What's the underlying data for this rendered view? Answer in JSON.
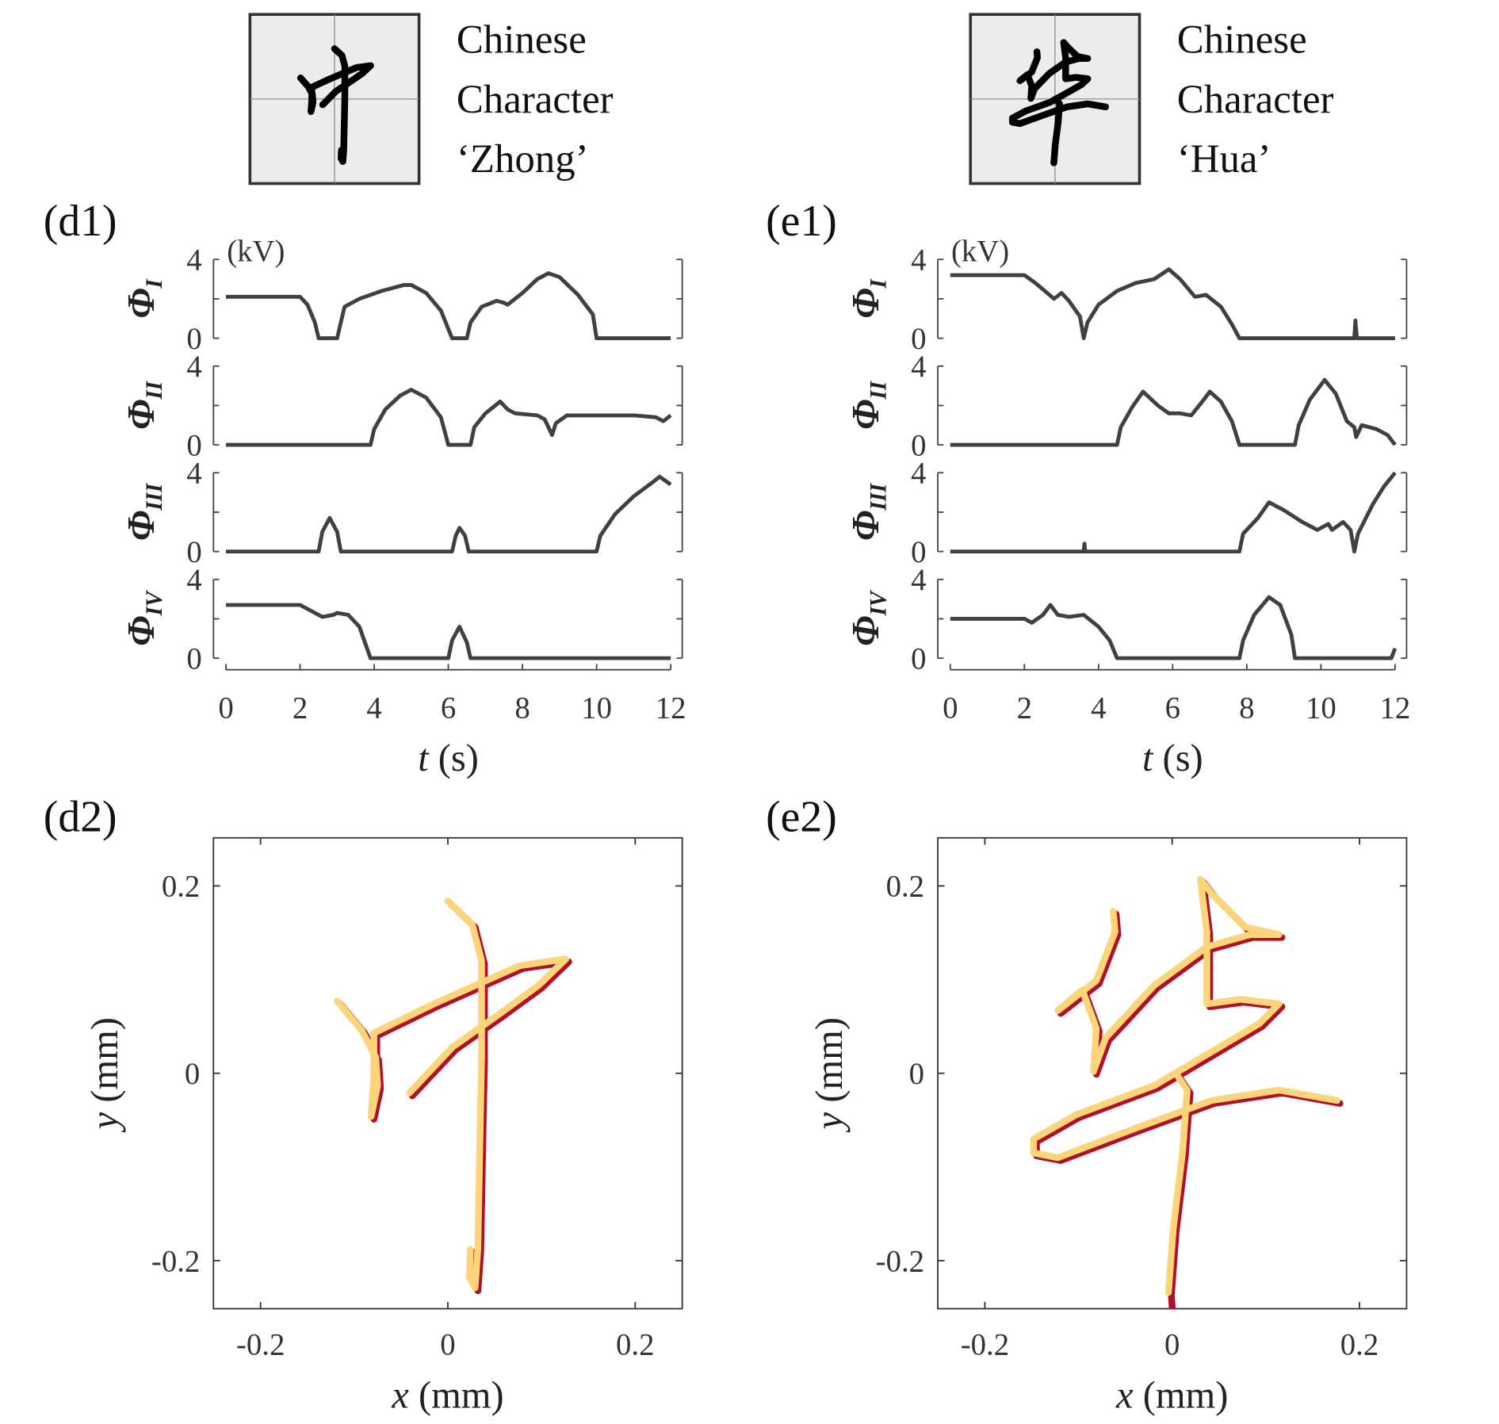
{
  "colors": {
    "trace": "#404040",
    "actual": "#b0102a",
    "target": "#fcd57a",
    "box_fill": "#ececec"
  },
  "header": [
    {
      "title_lines": [
        "Chinese",
        "Character",
        "‘Zhong’"
      ],
      "glyph": "中"
    },
    {
      "title_lines": [
        "Chinese",
        "Character",
        "‘Hua’"
      ],
      "glyph": "华"
    }
  ],
  "chart_data": [
    {
      "type": "line",
      "panel_label": "(d1)",
      "unit_label": "(kV)",
      "xlabel_var": "t",
      "xlabel_unit": "(s)",
      "xlim": [
        0,
        12
      ],
      "xticks": [
        0,
        2,
        4,
        6,
        8,
        10,
        12
      ],
      "ylim": [
        0,
        4
      ],
      "yticks": [
        0,
        4
      ],
      "series": [
        {
          "name": "Φ",
          "sub": "I",
          "points": [
            [
              0,
              2.1
            ],
            [
              2,
              2.1
            ],
            [
              2.2,
              1.7
            ],
            [
              2.4,
              0.8
            ],
            [
              2.5,
              0
            ],
            [
              3.0,
              0
            ],
            [
              3.1,
              0.8
            ],
            [
              3.2,
              1.6
            ],
            [
              3.6,
              2.0
            ],
            [
              4.2,
              2.4
            ],
            [
              4.8,
              2.7
            ],
            [
              5.0,
              2.7
            ],
            [
              5.4,
              2.3
            ],
            [
              5.8,
              1.4
            ],
            [
              6.1,
              0
            ],
            [
              6.5,
              0
            ],
            [
              6.6,
              0.8
            ],
            [
              6.9,
              1.6
            ],
            [
              7.3,
              1.9
            ],
            [
              7.5,
              1.8
            ],
            [
              7.6,
              1.7
            ],
            [
              8,
              2.3
            ],
            [
              8.4,
              3.0
            ],
            [
              8.7,
              3.3
            ],
            [
              9.0,
              3.1
            ],
            [
              9.5,
              2.2
            ],
            [
              9.9,
              1.2
            ],
            [
              10,
              0
            ],
            [
              12,
              0
            ]
          ]
        },
        {
          "name": "Φ",
          "sub": "II",
          "points": [
            [
              0,
              0
            ],
            [
              3.9,
              0
            ],
            [
              4.0,
              0.8
            ],
            [
              4.3,
              1.8
            ],
            [
              4.7,
              2.5
            ],
            [
              5.0,
              2.8
            ],
            [
              5.4,
              2.4
            ],
            [
              5.8,
              1.4
            ],
            [
              6.0,
              0
            ],
            [
              6.6,
              0
            ],
            [
              6.7,
              0.9
            ],
            [
              7.0,
              1.6
            ],
            [
              7.4,
              2.2
            ],
            [
              7.6,
              1.8
            ],
            [
              7.8,
              1.6
            ],
            [
              8.4,
              1.5
            ],
            [
              8.6,
              1.3
            ],
            [
              8.8,
              0.5
            ],
            [
              8.9,
              1.1
            ],
            [
              9.2,
              1.5
            ],
            [
              10,
              1.5
            ],
            [
              11,
              1.5
            ],
            [
              11.6,
              1.4
            ],
            [
              11.8,
              1.2
            ],
            [
              12,
              1.5
            ]
          ]
        },
        {
          "name": "Φ",
          "sub": "III",
          "points": [
            [
              0,
              0
            ],
            [
              2.5,
              0
            ],
            [
              2.6,
              1.0
            ],
            [
              2.8,
              1.7
            ],
            [
              3.0,
              1.0
            ],
            [
              3.1,
              0
            ],
            [
              6.1,
              0
            ],
            [
              6.2,
              0.8
            ],
            [
              6.3,
              1.2
            ],
            [
              6.45,
              0.8
            ],
            [
              6.55,
              0
            ],
            [
              10,
              0
            ],
            [
              10.1,
              0.8
            ],
            [
              10.5,
              1.9
            ],
            [
              11,
              2.8
            ],
            [
              11.5,
              3.5
            ],
            [
              11.7,
              3.8
            ],
            [
              12,
              3.4
            ]
          ]
        },
        {
          "name": "Φ",
          "sub": "IV",
          "points": [
            [
              0,
              2.7
            ],
            [
              2,
              2.7
            ],
            [
              2.3,
              2.4
            ],
            [
              2.6,
              2.1
            ],
            [
              2.9,
              2.2
            ],
            [
              3.0,
              2.3
            ],
            [
              3.3,
              2.2
            ],
            [
              3.6,
              1.6
            ],
            [
              3.9,
              0
            ],
            [
              6.0,
              0
            ],
            [
              6.1,
              0.9
            ],
            [
              6.3,
              1.6
            ],
            [
              6.5,
              0.8
            ],
            [
              6.6,
              0
            ],
            [
              12,
              0
            ]
          ]
        }
      ]
    },
    {
      "type": "line",
      "panel_label": "(e1)",
      "unit_label": "(kV)",
      "xlabel_var": "t",
      "xlabel_unit": "(s)",
      "xlim": [
        0,
        12
      ],
      "xticks": [
        0,
        2,
        4,
        6,
        8,
        10,
        12
      ],
      "ylim": [
        0,
        4
      ],
      "yticks": [
        0,
        4
      ],
      "series": [
        {
          "name": "Φ",
          "sub": "I",
          "points": [
            [
              0,
              3.2
            ],
            [
              2,
              3.2
            ],
            [
              2.3,
              2.8
            ],
            [
              2.8,
              2.0
            ],
            [
              3.0,
              2.3
            ],
            [
              3.2,
              1.9
            ],
            [
              3.5,
              1.1
            ],
            [
              3.6,
              0
            ],
            [
              3.7,
              0.8
            ],
            [
              4.0,
              1.7
            ],
            [
              4.5,
              2.4
            ],
            [
              5,
              2.8
            ],
            [
              5.5,
              3.0
            ],
            [
              5.9,
              3.5
            ],
            [
              6.2,
              3.0
            ],
            [
              6.6,
              2.1
            ],
            [
              6.9,
              2.2
            ],
            [
              7.3,
              1.6
            ],
            [
              7.6,
              0.7
            ],
            [
              7.8,
              0
            ],
            [
              10.9,
              0
            ],
            [
              10.93,
              0.9
            ],
            [
              10.97,
              0
            ],
            [
              12,
              0
            ]
          ]
        },
        {
          "name": "Φ",
          "sub": "II",
          "points": [
            [
              0,
              0
            ],
            [
              4.5,
              0
            ],
            [
              4.6,
              0.9
            ],
            [
              4.9,
              1.9
            ],
            [
              5.2,
              2.7
            ],
            [
              5.6,
              2.0
            ],
            [
              5.9,
              1.6
            ],
            [
              6.2,
              1.6
            ],
            [
              6.5,
              1.5
            ],
            [
              6.8,
              2.2
            ],
            [
              7.0,
              2.7
            ],
            [
              7.3,
              2.2
            ],
            [
              7.6,
              1.2
            ],
            [
              7.8,
              0
            ],
            [
              9.3,
              0
            ],
            [
              9.4,
              1.0
            ],
            [
              9.7,
              2.3
            ],
            [
              10.1,
              3.3
            ],
            [
              10.4,
              2.6
            ],
            [
              10.7,
              1.2
            ],
            [
              10.9,
              0.9
            ],
            [
              10.95,
              0.4
            ],
            [
              11.1,
              1.0
            ],
            [
              11.5,
              0.8
            ],
            [
              11.8,
              0.5
            ],
            [
              12,
              0
            ]
          ]
        },
        {
          "name": "Φ",
          "sub": "III",
          "points": [
            [
              0,
              0
            ],
            [
              3.6,
              0
            ],
            [
              3.62,
              0.4
            ],
            [
              3.64,
              0
            ],
            [
              7.8,
              0
            ],
            [
              7.9,
              0.9
            ],
            [
              8.3,
              1.7
            ],
            [
              8.6,
              2.5
            ],
            [
              9,
              2.1
            ],
            [
              9.5,
              1.5
            ],
            [
              9.9,
              1.1
            ],
            [
              10.2,
              1.4
            ],
            [
              10.3,
              1.1
            ],
            [
              10.6,
              1.5
            ],
            [
              10.8,
              1.1
            ],
            [
              10.9,
              0
            ],
            [
              11.0,
              0.9
            ],
            [
              11.4,
              2.4
            ],
            [
              11.7,
              3.3
            ],
            [
              12,
              4.0
            ]
          ]
        },
        {
          "name": "Φ",
          "sub": "IV",
          "points": [
            [
              0,
              2.0
            ],
            [
              2,
              2.0
            ],
            [
              2.2,
              1.8
            ],
            [
              2.5,
              2.2
            ],
            [
              2.7,
              2.7
            ],
            [
              2.9,
              2.2
            ],
            [
              3.2,
              2.1
            ],
            [
              3.6,
              2.2
            ],
            [
              4.0,
              1.6
            ],
            [
              4.3,
              0.9
            ],
            [
              4.5,
              0
            ],
            [
              7.8,
              0
            ],
            [
              7.9,
              0.9
            ],
            [
              8.2,
              2.2
            ],
            [
              8.6,
              3.1
            ],
            [
              8.9,
              2.7
            ],
            [
              9.2,
              1.2
            ],
            [
              9.3,
              0
            ],
            [
              11.9,
              0
            ],
            [
              12,
              0.5
            ]
          ]
        }
      ]
    },
    {
      "type": "line",
      "panel_label": "(d2)",
      "xlabel_var": "x",
      "xlabel_unit": "(mm)",
      "ylabel_var": "y",
      "ylabel_unit": "(mm)",
      "xlim": [
        -0.25,
        0.25
      ],
      "ylim": [
        -0.25,
        0.25
      ],
      "xticks": [
        "-0.2",
        "0",
        "0.2"
      ],
      "yticks": [
        "-0.2",
        "0",
        "0.2"
      ],
      "strokes": [
        [
          [
            -0.118,
            0.077
          ],
          [
            -0.092,
            0.046
          ],
          [
            -0.077,
            0.017
          ],
          [
            -0.075,
            -0.013
          ],
          [
            -0.082,
            -0.046
          ],
          [
            -0.079,
            -0.003
          ],
          [
            -0.079,
            0.043
          ],
          [
            -0.015,
            0.074
          ],
          [
            0.077,
            0.115
          ],
          [
            0.126,
            0.122
          ],
          [
            0.097,
            0.094
          ],
          [
            0.056,
            0.064
          ],
          [
            0.005,
            0.028
          ],
          [
            -0.041,
            -0.021
          ]
        ],
        [
          [
            0,
            0.184
          ],
          [
            0.026,
            0.159
          ],
          [
            0.036,
            0.12
          ],
          [
            0.036,
            0.017
          ],
          [
            0.034,
            -0.085
          ],
          [
            0.032,
            -0.188
          ],
          [
            0.029,
            -0.229
          ],
          [
            0.023,
            -0.218
          ],
          [
            0.024,
            -0.188
          ]
        ]
      ]
    },
    {
      "type": "line",
      "panel_label": "(e2)",
      "xlabel_var": "x",
      "xlabel_unit": "(mm)",
      "ylabel_var": "y",
      "ylabel_unit": "(mm)",
      "xlim": [
        -0.25,
        0.25
      ],
      "ylim": [
        -0.25,
        0.25
      ],
      "xticks": [
        "-0.2",
        "0",
        "0.2"
      ],
      "yticks": [
        "-0.2",
        "0",
        "0.2"
      ],
      "strokes": [
        [
          [
            -0.063,
            0.173
          ],
          [
            -0.061,
            0.151
          ],
          [
            -0.081,
            0.099
          ],
          [
            -0.122,
            0.067
          ],
          [
            -0.096,
            0.089
          ],
          [
            -0.081,
            0.048
          ],
          [
            -0.084,
            0.002
          ],
          [
            -0.071,
            0.038
          ],
          [
            -0.019,
            0.094
          ],
          [
            0.037,
            0.135
          ],
          [
            0.083,
            0.148
          ],
          [
            0.114,
            0.148
          ],
          [
            0.078,
            0.156
          ],
          [
            0.042,
            0.192
          ],
          [
            0.03,
            0.207
          ],
          [
            0.037,
            0.151
          ],
          [
            0.037,
            0.074
          ],
          [
            0.073,
            0.079
          ],
          [
            0.114,
            0.074
          ],
          [
            0.093,
            0.053
          ],
          [
            0.032,
            0.017
          ],
          [
            -0.019,
            -0.013
          ],
          [
            -0.102,
            -0.044
          ],
          [
            -0.148,
            -0.07
          ],
          [
            -0.148,
            -0.085
          ],
          [
            -0.122,
            -0.09
          ],
          [
            -0.04,
            -0.059
          ],
          [
            0.042,
            -0.029
          ],
          [
            0.114,
            -0.018
          ],
          [
            0.176,
            -0.029
          ]
        ],
        [
          [
            0.006,
            -0.003
          ],
          [
            0.016,
            -0.018
          ],
          [
            0.011,
            -0.085
          ],
          [
            0.001,
            -0.167
          ],
          [
            -0.004,
            -0.234
          ]
        ]
      ]
    }
  ]
}
